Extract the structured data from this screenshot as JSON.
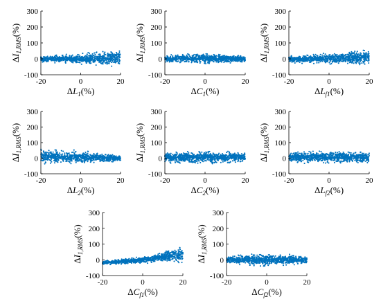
{
  "chart_data": [
    {
      "type": "scatter",
      "xlabel_main": "ΔL",
      "xlabel_sub": "1",
      "xlabel_unit": "(%)",
      "ylabel_main": "ΔI",
      "ylabel_sub": "1,RMS",
      "ylabel_unit": "(%)",
      "xlim": [
        -20,
        20
      ],
      "ylim": [
        -100,
        300
      ],
      "xticks": [
        -20,
        0,
        20
      ],
      "yticks": [
        -100,
        0,
        100,
        200,
        300
      ],
      "trend": "slight positive slope, spread widens with x",
      "y_center_at": {
        "-20": -2,
        "0": 0,
        "20": 5
      },
      "spread_half_at": {
        "-20": 15,
        "0": 28,
        "20": 45
      }
    },
    {
      "type": "scatter",
      "xlabel_main": "ΔC",
      "xlabel_sub": "1",
      "xlabel_unit": "(%)",
      "ylabel_main": "ΔI",
      "ylabel_sub": "1,RMS",
      "ylabel_unit": "(%)",
      "xlim": [
        -20,
        20
      ],
      "ylim": [
        -100,
        300
      ],
      "xticks": [
        -20,
        0,
        20
      ],
      "yticks": [
        -100,
        0,
        100,
        200,
        300
      ],
      "trend": "flat, spread largest at center",
      "y_center_at": {
        "-20": 0,
        "0": 3,
        "20": 0
      },
      "spread_half_at": {
        "-20": 18,
        "0": 32,
        "20": 18
      }
    },
    {
      "type": "scatter",
      "xlabel_main": "ΔL",
      "xlabel_sub": "f1",
      "xlabel_unit": "(%)",
      "ylabel_main": "ΔI",
      "ylabel_sub": "1,RMS",
      "ylabel_unit": "(%)",
      "xlim": [
        -20,
        20
      ],
      "ylim": [
        -100,
        300
      ],
      "xticks": [
        -20,
        0,
        20
      ],
      "yticks": [
        -100,
        0,
        100,
        200,
        300
      ],
      "trend": "slight positive slope, spread widens with x",
      "y_center_at": {
        "-20": -3,
        "0": 2,
        "20": 10
      },
      "spread_half_at": {
        "-20": 18,
        "0": 28,
        "20": 45
      }
    },
    {
      "type": "scatter",
      "xlabel_main": "ΔL",
      "xlabel_sub": "2",
      "xlabel_unit": "(%)",
      "ylabel_main": "ΔI",
      "ylabel_sub": "1,RMS",
      "ylabel_unit": "(%)",
      "xlim": [
        -20,
        20
      ],
      "ylim": [
        -100,
        300
      ],
      "xticks": [
        -20,
        0,
        20
      ],
      "yticks": [
        -100,
        0,
        100,
        200,
        300
      ],
      "trend": "slight negative slope, spread narrows with x",
      "y_center_at": {
        "-20": 12,
        "0": 5,
        "20": 0
      },
      "spread_half_at": {
        "-20": 40,
        "0": 35,
        "20": 18
      }
    },
    {
      "type": "scatter",
      "xlabel_main": "ΔC",
      "xlabel_sub": "2",
      "xlabel_unit": "(%)",
      "ylabel_main": "ΔI",
      "ylabel_sub": "1,RMS",
      "ylabel_unit": "(%)",
      "xlim": [
        -20,
        20
      ],
      "ylim": [
        -100,
        300
      ],
      "xticks": [
        -20,
        0,
        20
      ],
      "yticks": [
        -100,
        0,
        100,
        200,
        300
      ],
      "trend": "flat",
      "y_center_at": {
        "-20": 5,
        "0": 5,
        "20": 5
      },
      "spread_half_at": {
        "-20": 30,
        "0": 35,
        "20": 28
      }
    },
    {
      "type": "scatter",
      "xlabel_main": "ΔL",
      "xlabel_sub": "f2",
      "xlabel_unit": "(%)",
      "ylabel_main": "ΔI",
      "ylabel_sub": "1,RMS",
      "ylabel_unit": "(%)",
      "xlim": [
        -20,
        20
      ],
      "ylim": [
        -100,
        300
      ],
      "xticks": [
        -20,
        0,
        20
      ],
      "yticks": [
        -100,
        0,
        100,
        200,
        300
      ],
      "trend": "flat",
      "y_center_at": {
        "-20": 5,
        "0": 8,
        "20": 3
      },
      "spread_half_at": {
        "-20": 30,
        "0": 35,
        "20": 30
      }
    },
    {
      "type": "scatter",
      "xlabel_main": "ΔC",
      "xlabel_sub": "f1",
      "xlabel_unit": "(%)",
      "ylabel_main": "ΔI",
      "ylabel_sub": "1,RMS",
      "ylabel_unit": "(%)",
      "xlim": [
        -20,
        20
      ],
      "ylim": [
        -100,
        300
      ],
      "xticks": [
        -20,
        0,
        20
      ],
      "yticks": [
        -100,
        0,
        100,
        200,
        300
      ],
      "trend": "positive slope, spread widens with x",
      "y_center_at": {
        "-20": -20,
        "0": 0,
        "20": 35
      },
      "spread_half_at": {
        "-20": 12,
        "0": 18,
        "20": 45
      }
    },
    {
      "type": "scatter",
      "xlabel_main": "ΔC",
      "xlabel_sub": "f2",
      "xlabel_unit": "(%)",
      "ylabel_main": "ΔI",
      "ylabel_sub": "1,RMS",
      "ylabel_unit": "(%)",
      "xlim": [
        -20,
        20
      ],
      "ylim": [
        -100,
        300
      ],
      "xticks": [
        -20,
        0,
        20
      ],
      "yticks": [
        -100,
        0,
        100,
        200,
        300
      ],
      "trend": "flat, spread largest at center",
      "y_center_at": {
        "-20": 0,
        "0": 0,
        "20": 0
      },
      "spread_half_at": {
        "-20": 22,
        "0": 35,
        "20": 22
      }
    }
  ],
  "style": {
    "marker_color": "#0072bd",
    "axis_color": "#000000"
  }
}
